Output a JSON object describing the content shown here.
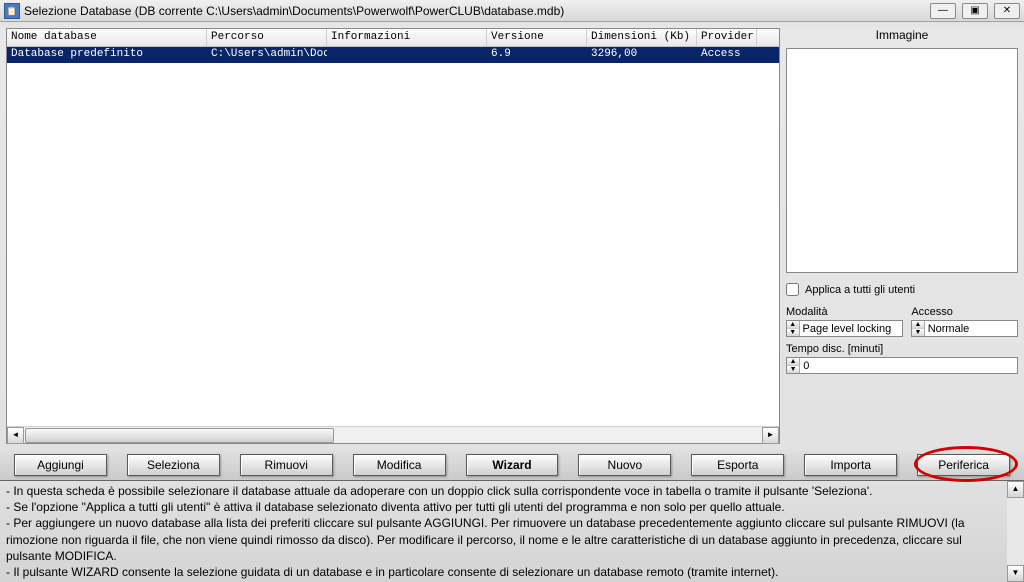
{
  "title": "Selezione Database (DB corrente C:\\Users\\admin\\Documents\\Powerwolf\\PowerCLUB\\database.mdb)",
  "columns": {
    "name": "Nome database",
    "path": "Percorso",
    "info": "Informazioni",
    "version": "Versione",
    "dim": "Dimensioni (Kb)",
    "provider": "Provider"
  },
  "row": {
    "name": "Database predefinito",
    "path": "C:\\Users\\admin\\Doc",
    "info": "",
    "version": "6.9",
    "dim": "3296,00",
    "provider": "Access"
  },
  "right": {
    "image_label": "Immagine",
    "apply_all": "Applica a tutti gli utenti",
    "mode_label": "Modalità",
    "mode_value": "Page level locking",
    "access_label": "Accesso",
    "access_value": "Normale",
    "timeout_label": "Tempo disc. [minuti]",
    "timeout_value": "0"
  },
  "buttons": {
    "add": "Aggiungi",
    "select": "Seleziona",
    "remove": "Rimuovi",
    "edit": "Modifica",
    "wizard": "Wizard",
    "new": "Nuovo",
    "export": "Esporta",
    "import": "Importa",
    "device": "Periferica"
  },
  "help": {
    "l1": "- In questa scheda è possibile selezionare il database attuale da adoperare con  un doppio click sulla corrispondente voce in tabella o tramite il pulsante 'Seleziona'.",
    "l2": "- Se l'opzione \"Applica a tutti gli utenti\" è attiva il database selezionato diventa attivo per tutti gli utenti del programma e non solo per quello attuale.",
    "l3": "- Per aggiungere un nuovo database alla lista dei preferiti cliccare sul pulsante AGGIUNGI. Per rimuovere un database precedentemente aggiunto cliccare sul pulsante RIMUOVI (la rimozione non riguarda il file, che non viene quindi rimosso da disco). Per modificare il percorso, il nome e le altre caratteristiche di un database aggiunto in precedenza, cliccare sul pulsante MODIFICA.",
    "l4": "- Il pulsante WIZARD consente la selezione guidata di un database e in particolare consente di selezionare un database remoto (tramite internet)."
  },
  "winbtn": {
    "min": "—",
    "max": "▣",
    "close": "✕"
  }
}
